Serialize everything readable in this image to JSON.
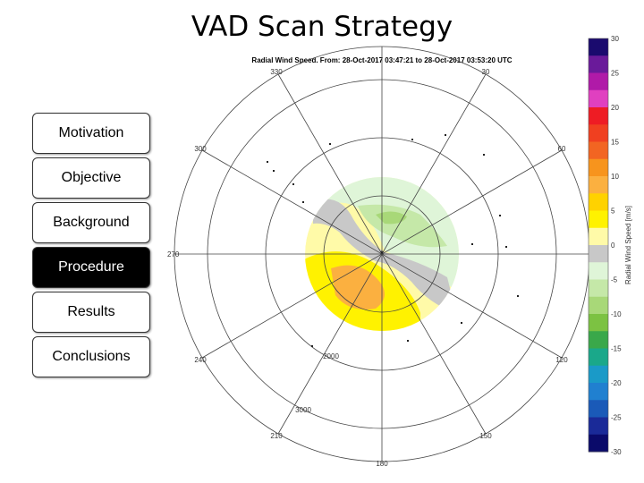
{
  "title": "VAD Scan Strategy",
  "nav": [
    "Motivation",
    "Objective",
    "Background",
    "Procedure",
    "Results",
    "Conclusions"
  ],
  "plot": {
    "title": "Radial Wind Speed. From: 28-Oct-2017 03:47:21 to 28-Oct-2017 03:53:20 UTC",
    "azimuth_labels": [
      "330",
      "30",
      "300",
      "60",
      "270",
      "240",
      "120",
      "210",
      "150",
      "180"
    ],
    "range_labels": [
      "2000",
      "3000"
    ]
  },
  "colorbar": {
    "label": "Radial Wind Speed [m/s]",
    "ticks": [
      "30",
      "25",
      "20",
      "15",
      "10",
      "5",
      "0",
      "-5",
      "-10",
      "-15",
      "-20",
      "-25",
      "-30"
    ],
    "colors": [
      "#1a0a6e",
      "#6a1a9a",
      "#b01aa8",
      "#e040c0",
      "#ee1c24",
      "#f04020",
      "#f26522",
      "#f7941d",
      "#fbb040",
      "#ffd200",
      "#fff200",
      "#fffaa8",
      "#c8c8c8",
      "#dff5d8",
      "#c5e8a8",
      "#a8d878",
      "#7cc242",
      "#3aa84a",
      "#1aa88a",
      "#1a9ac8",
      "#2080d0",
      "#1a5ab8",
      "#1a2a98",
      "#0a0a6a"
    ]
  }
}
